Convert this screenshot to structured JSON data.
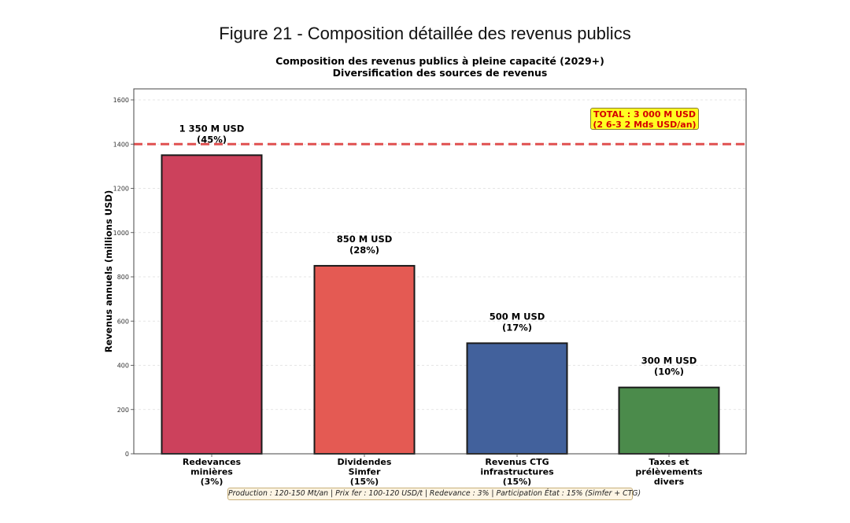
{
  "figure_title": "Figure 21 - Composition détaillée des revenus publics",
  "chart_data": {
    "type": "bar",
    "title_line1": "Composition des revenus publics à pleine capacité (2029+)",
    "title_line2": "Diversification des sources de revenus",
    "ylabel": "Revenus annuels (millions USD)",
    "xlabel": "",
    "ylim": [
      0,
      1600
    ],
    "yticks": [
      0,
      200,
      400,
      600,
      800,
      1000,
      1200,
      1400,
      1600
    ],
    "grid": true,
    "categories": [
      [
        "Redevances",
        "minières",
        "(3%)"
      ],
      [
        "Dividendes",
        "Simfer",
        "(15%)"
      ],
      [
        "Revenus CTG",
        "infrastructures",
        "(15%)"
      ],
      [
        "Taxes et",
        "prélèvements",
        "divers"
      ]
    ],
    "values": [
      1350,
      850,
      500,
      300
    ],
    "value_labels": [
      [
        "1 350 M USD",
        "(45%)"
      ],
      [
        "850 M USD",
        "(28%)"
      ],
      [
        "500 M USD",
        "(17%)"
      ],
      [
        "300 M USD",
        "(10%)"
      ]
    ],
    "colors": [
      "#cc415c",
      "#e45a53",
      "#42619c",
      "#4b8b4b"
    ],
    "reference_line": {
      "value": 1400,
      "color": "#e05050",
      "style": "dashed"
    },
    "annotation_total": [
      "TOTAL : 3 000 M USD",
      "(2 6-3 2 Mds USD/an)"
    ],
    "footer_note": "Production : 120-150 Mt/an | Prix fer : 100-120 USD/t | Redevance : 3% | Participation État : 15% (Simfer + CTG)"
  }
}
